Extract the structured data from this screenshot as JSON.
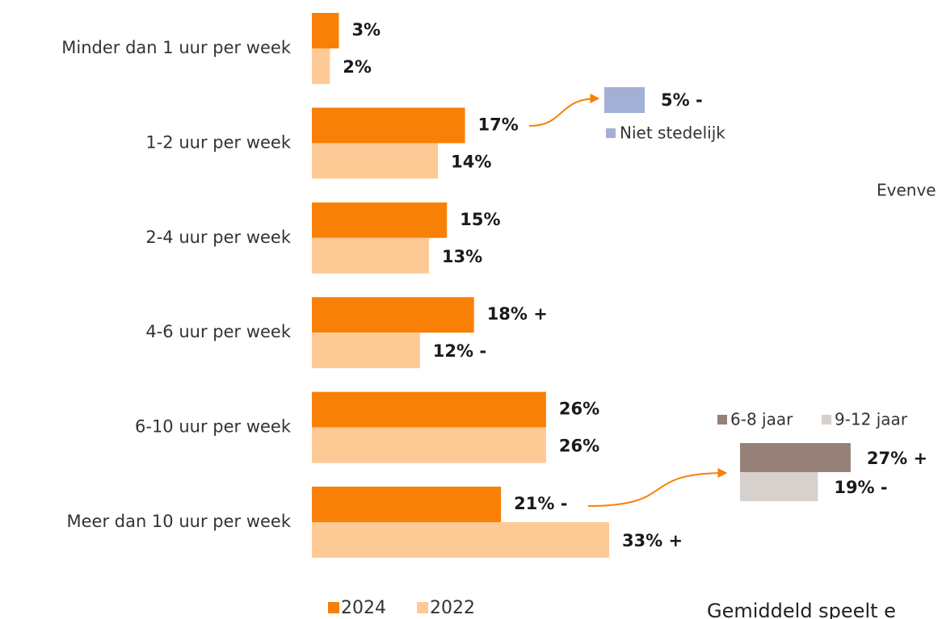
{
  "chart_data": [
    {
      "type": "bar",
      "orientation": "horizontal",
      "categories": [
        "Minder dan 1 uur per week",
        "1-2 uur per week",
        "2-4 uur per week",
        "4-6 uur per week",
        "6-10 uur per week",
        "Meer dan 10 uur per week"
      ],
      "series": [
        {
          "name": "2024",
          "color": "#f98006",
          "values": [
            3,
            17,
            15,
            18,
            26,
            21
          ],
          "value_labels": [
            "3%",
            "17%",
            "15%",
            "18% +",
            "26%",
            "21% -"
          ]
        },
        {
          "name": "2022",
          "color": "#fdca96",
          "values": [
            2,
            14,
            13,
            12,
            26,
            33
          ],
          "value_labels": [
            "2%",
            "14%",
            "13%",
            "12% -",
            "26%",
            "33% +"
          ]
        }
      ]
    },
    {
      "type": "bar",
      "orientation": "horizontal",
      "series": [
        {
          "name": "Niet stedelijk",
          "color": "#a4afd6",
          "values": [
            5
          ],
          "value_labels": [
            "5% -"
          ]
        }
      ]
    },
    {
      "type": "bar",
      "orientation": "horizontal",
      "series": [
        {
          "name": "6-8 jaar",
          "color": "#958178",
          "values": [
            27
          ],
          "value_labels": [
            "27% +"
          ]
        },
        {
          "name": "9-12 jaar",
          "color": "#d6d1cd",
          "values": [
            19
          ],
          "value_labels": [
            "19% -"
          ]
        }
      ]
    }
  ],
  "annotations": [
    "Evenve",
    "Gemiddeld speelt e"
  ]
}
